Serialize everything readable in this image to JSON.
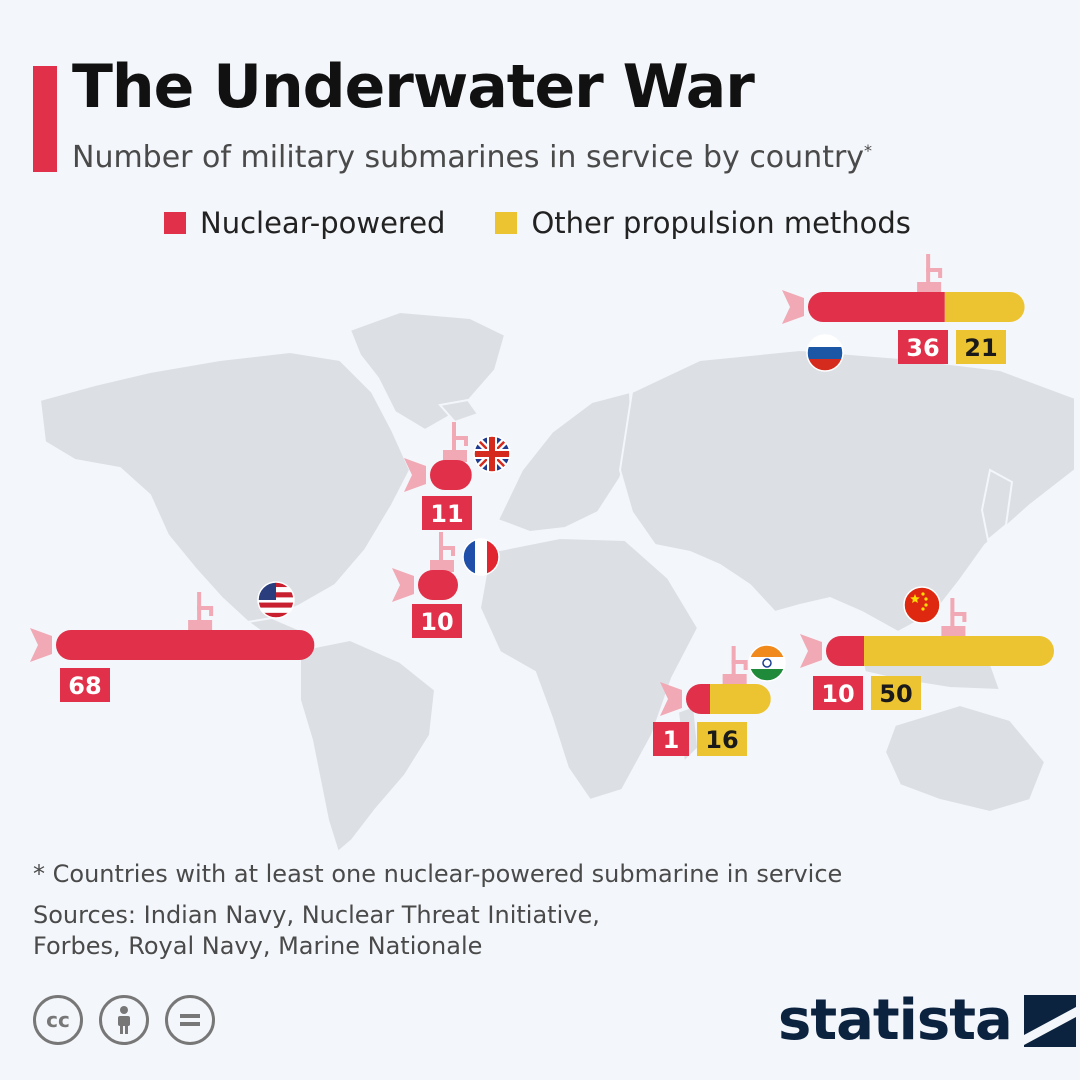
{
  "header": {
    "title": "The Underwater War",
    "subtitle": "Number of military submarines in service by country",
    "subtitle_mark": "*"
  },
  "legend": {
    "nuclear_label": "Nuclear-powered",
    "other_label": "Other propulsion methods"
  },
  "colors": {
    "nuclear": "#e0304a",
    "other": "#ecc330",
    "accent": "#e0304a",
    "map": "#dcdfe3",
    "brand": "#0c2340"
  },
  "chart_data": {
    "type": "bar",
    "title": "The Underwater War",
    "subtitle": "Number of military submarines in service by country",
    "series": [
      {
        "name": "Nuclear-powered",
        "color": "#e0304a"
      },
      {
        "name": "Other propulsion methods",
        "color": "#ecc330"
      }
    ],
    "countries": [
      {
        "flag": "russia-flag-icon",
        "nuclear": 36,
        "other": 21
      },
      {
        "flag": "uk-flag-icon",
        "nuclear": 11,
        "other": 0
      },
      {
        "flag": "france-flag-icon",
        "nuclear": 10,
        "other": 0
      },
      {
        "flag": "usa-flag-icon",
        "nuclear": 68,
        "other": 0
      },
      {
        "flag": "india-flag-icon",
        "nuclear": 1,
        "other": 16
      },
      {
        "flag": "china-flag-icon",
        "nuclear": 10,
        "other": 50
      }
    ]
  },
  "footer": {
    "footnote": "* Countries with at least one nuclear-powered submarine in service",
    "sources": "Sources: Indian Navy, Nuclear Threat Initiative, Forbes, Royal Navy, Marine Nationale",
    "brand": "statista",
    "license_icons": [
      "cc-icon",
      "attribution-icon",
      "no-derivatives-icon"
    ]
  }
}
